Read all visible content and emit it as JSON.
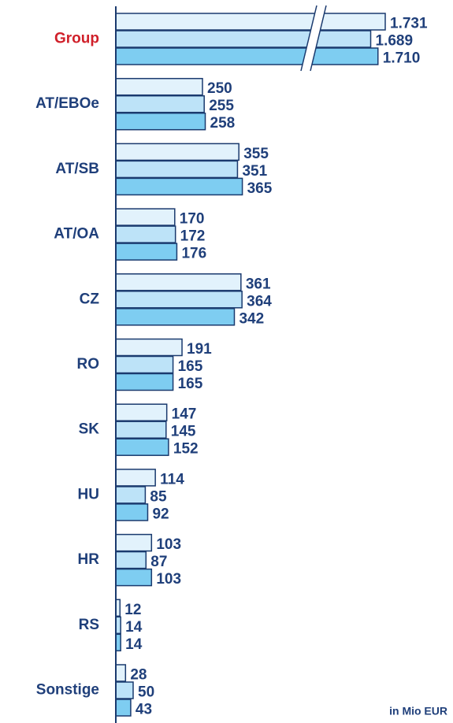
{
  "chart_data": {
    "type": "bar",
    "orientation": "horizontal",
    "categories": [
      "Group",
      "AT/EBOe",
      "AT/SB",
      "AT/OA",
      "CZ",
      "RO",
      "SK",
      "HU",
      "HR",
      "RS",
      "Sonstige"
    ],
    "label_colors": [
      "#d0202a",
      "#1f3f7a",
      "#1f3f7a",
      "#1f3f7a",
      "#1f3f7a",
      "#1f3f7a",
      "#1f3f7a",
      "#1f3f7a",
      "#1f3f7a",
      "#1f3f7a",
      "#1f3f7a"
    ],
    "series": [
      {
        "color": "#e2f2fc",
        "values": [
          1731,
          250,
          355,
          170,
          361,
          191,
          147,
          114,
          103,
          12,
          28
        ],
        "value_labels": [
          "1.731",
          "250",
          "355",
          "170",
          "361",
          "191",
          "147",
          "114",
          "103",
          "12",
          "28"
        ]
      },
      {
        "color": "#bde3f8",
        "values": [
          1689,
          255,
          351,
          172,
          364,
          165,
          145,
          85,
          87,
          14,
          50
        ],
        "value_labels": [
          "1.689",
          "255",
          "351",
          "172",
          "364",
          "165",
          "145",
          "85",
          "87",
          "14",
          "50"
        ]
      },
      {
        "color": "#7ecdf1",
        "values": [
          1710,
          258,
          365,
          176,
          342,
          165,
          152,
          92,
          103,
          14,
          43
        ],
        "value_labels": [
          "1.710",
          "258",
          "365",
          "176",
          "342",
          "165",
          "152",
          "92",
          "103",
          "14",
          "43"
        ]
      }
    ],
    "axis_break": true,
    "annotation": "in Mio EUR"
  }
}
